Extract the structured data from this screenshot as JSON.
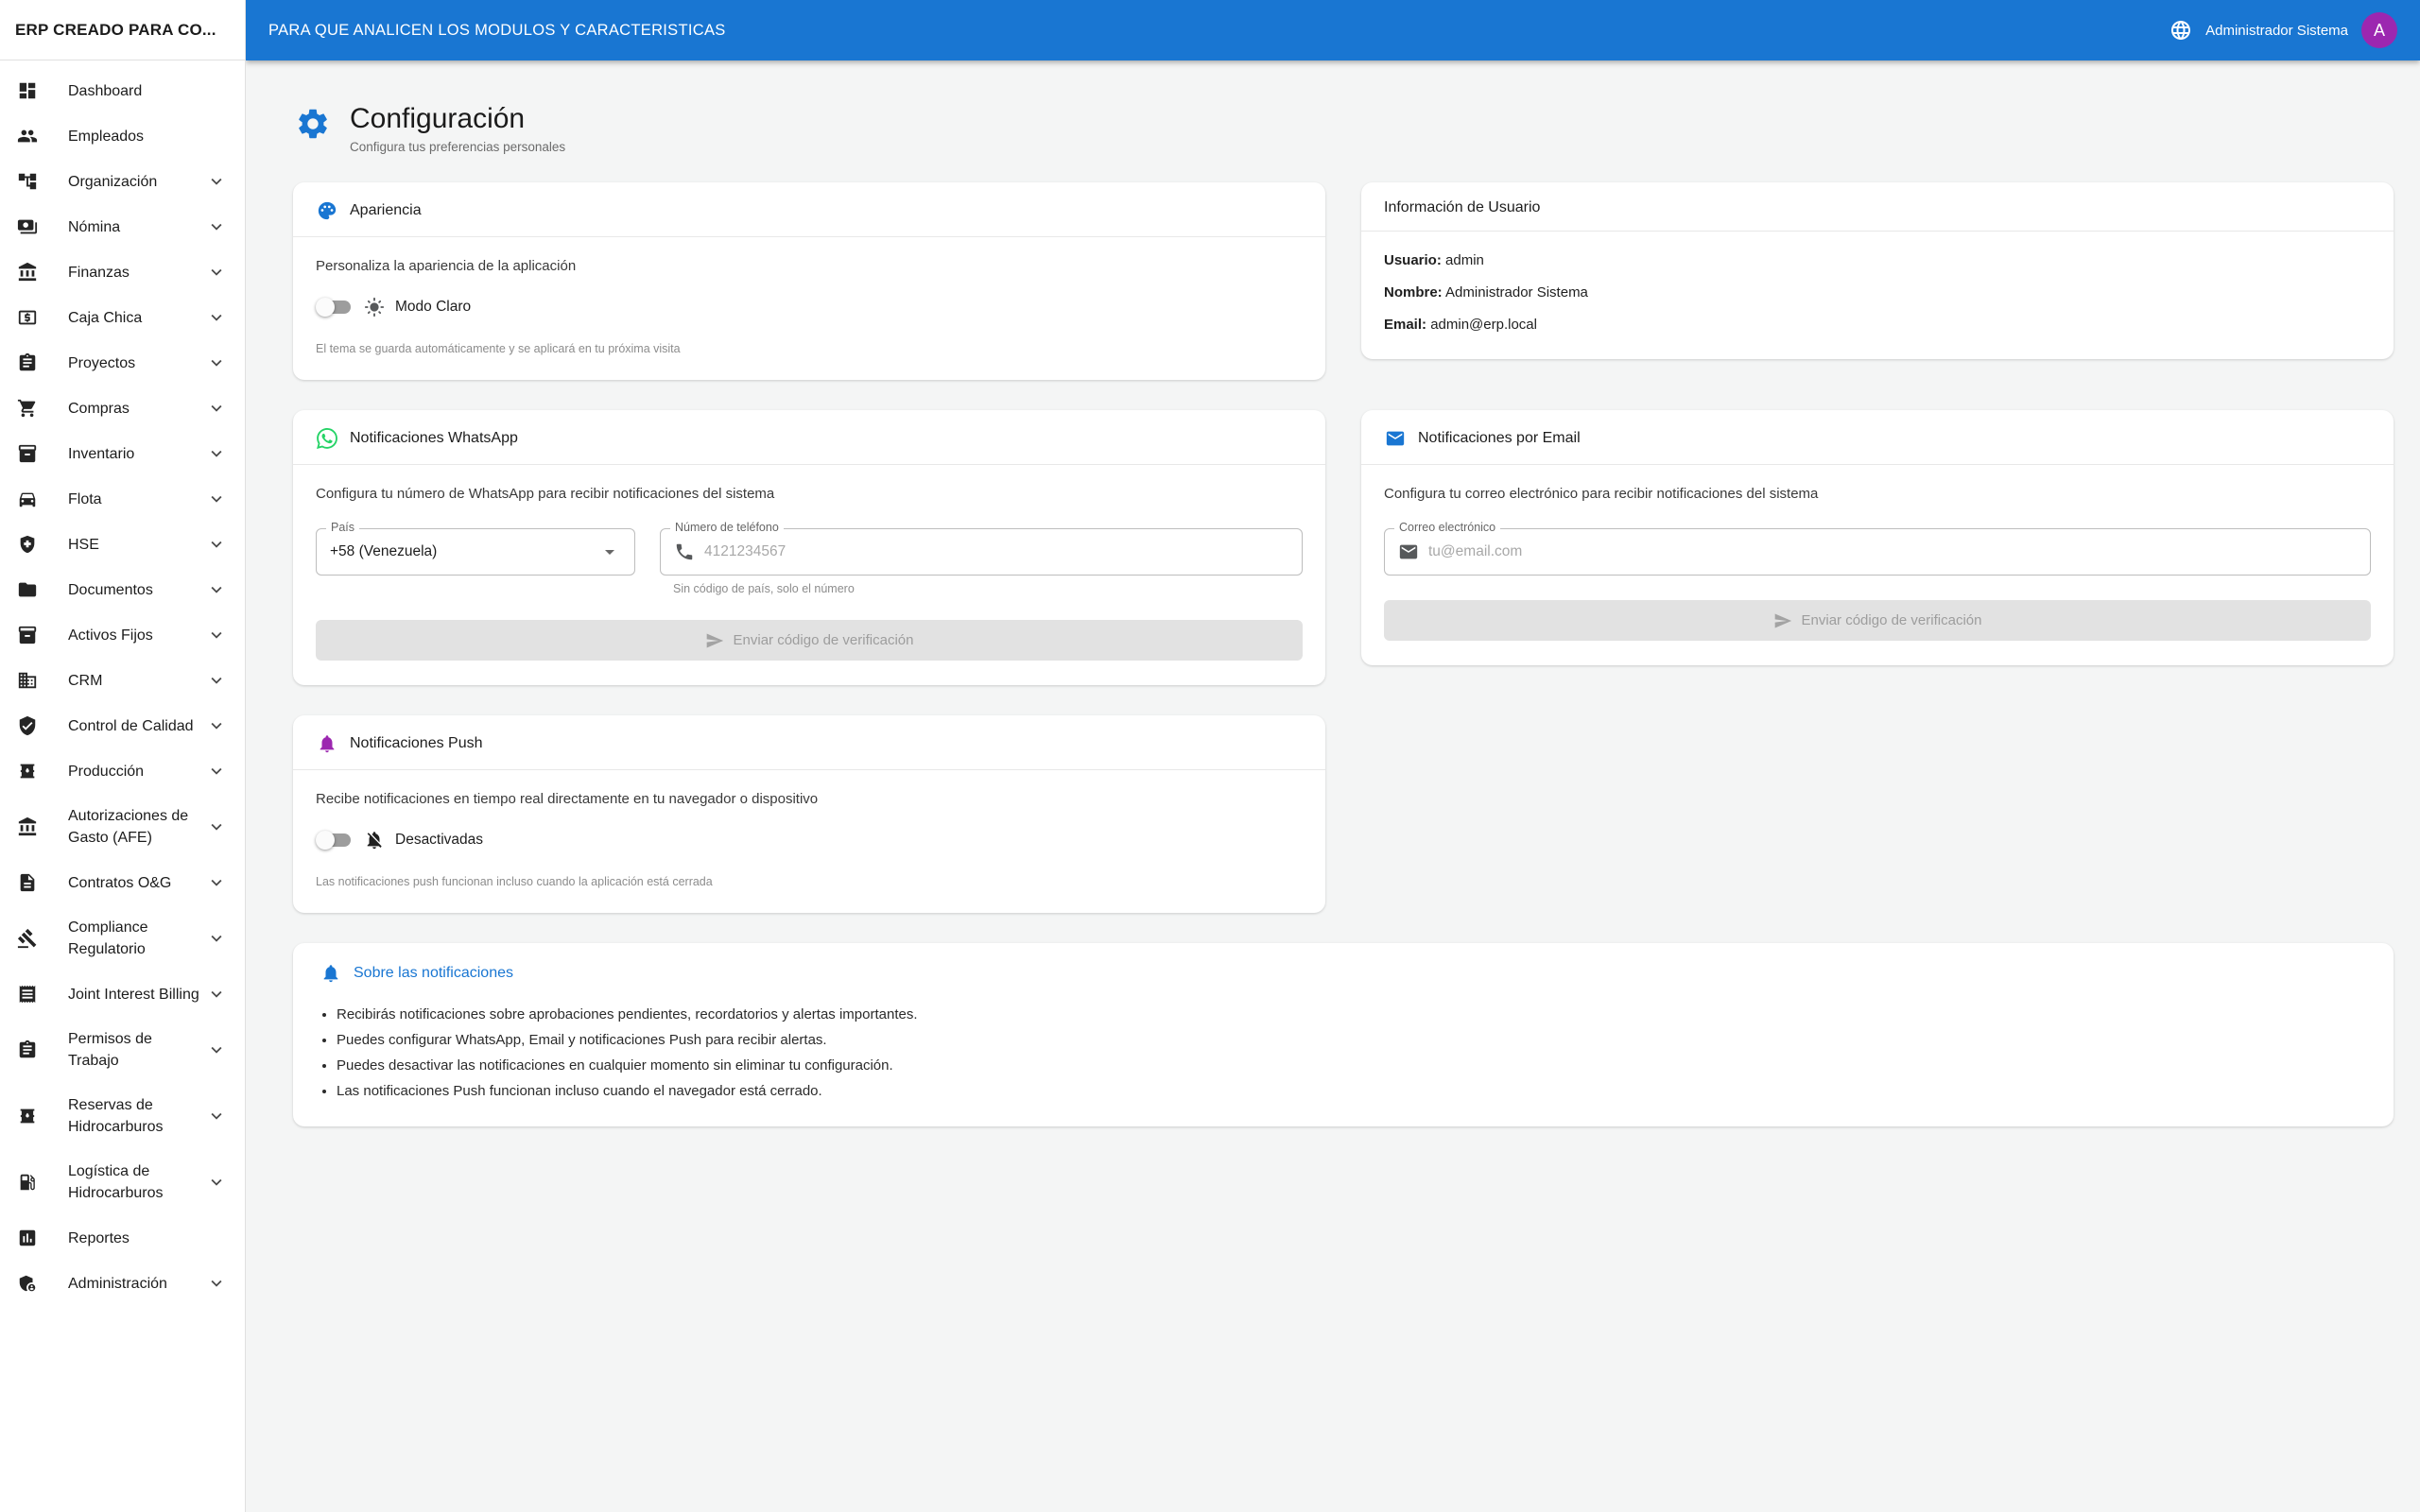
{
  "colors": {
    "accent": "#1976d2",
    "whatsapp_green": "#25d366",
    "push_purple": "#9c27b0",
    "avatar_bg": "#9c27b0"
  },
  "app_bar": {
    "sidebar_title": "ERP CREADO PARA CO...",
    "title": "PARA QUE ANALICEN LOS MODULOS Y CARACTERISTICAS",
    "globe_icon": "globe-icon",
    "user_name": "Administrador Sistema",
    "avatar_initial": "A"
  },
  "sidebar": {
    "items": [
      {
        "label": "Dashboard",
        "icon": "dashboard-icon",
        "expandable": false
      },
      {
        "label": "Empleados",
        "icon": "people-icon",
        "expandable": false
      },
      {
        "label": "Organización",
        "icon": "org-tree-icon",
        "expandable": true
      },
      {
        "label": "Nómina",
        "icon": "payments-icon",
        "expandable": true
      },
      {
        "label": "Finanzas",
        "icon": "bank-icon",
        "expandable": true
      },
      {
        "label": "Caja Chica",
        "icon": "cash-box-icon",
        "expandable": true
      },
      {
        "label": "Proyectos",
        "icon": "clipboard-icon",
        "expandable": true
      },
      {
        "label": "Compras",
        "icon": "cart-icon",
        "expandable": true
      },
      {
        "label": "Inventario",
        "icon": "inventory-icon",
        "expandable": true
      },
      {
        "label": "Flota",
        "icon": "car-icon",
        "expandable": true
      },
      {
        "label": "HSE",
        "icon": "health-safety-icon",
        "expandable": true
      },
      {
        "label": "Documentos",
        "icon": "folder-icon",
        "expandable": true
      },
      {
        "label": "Activos Fijos",
        "icon": "inventory-icon",
        "expandable": true
      },
      {
        "label": "CRM",
        "icon": "building-icon",
        "expandable": true
      },
      {
        "label": "Control de Calidad",
        "icon": "shield-check-icon",
        "expandable": true
      },
      {
        "label": "Producción",
        "icon": "oil-barrel-icon",
        "expandable": true
      },
      {
        "label": "Autorizaciones de Gasto (AFE)",
        "icon": "bank-icon",
        "expandable": true
      },
      {
        "label": "Contratos O&G",
        "icon": "document-icon",
        "expandable": true
      },
      {
        "label": "Compliance Regulatorio",
        "icon": "gavel-icon",
        "expandable": true
      },
      {
        "label": "Joint Interest Billing",
        "icon": "receipt-icon",
        "expandable": true
      },
      {
        "label": "Permisos de Trabajo",
        "icon": "clipboard-icon",
        "expandable": true
      },
      {
        "label": "Reservas de Hidrocarburos",
        "icon": "oil-barrel-icon",
        "expandable": true
      },
      {
        "label": "Logística de Hidrocarburos",
        "icon": "fuel-icon",
        "expandable": true
      },
      {
        "label": "Reportes",
        "icon": "chart-icon",
        "expandable": false
      },
      {
        "label": "Administración",
        "icon": "admin-icon",
        "expandable": true
      }
    ]
  },
  "page": {
    "icon": "gear-icon",
    "title": "Configuración",
    "subtitle": "Configura tus preferencias personales"
  },
  "cards": {
    "appearance": {
      "icon": "palette-icon",
      "title": "Apariencia",
      "description": "Personaliza la apariencia de la aplicación",
      "toggle_icon": "sun-icon",
      "toggle_label": "Modo Claro",
      "toggle_state": "off",
      "caption": "El tema se guarda automáticamente y se aplicará en tu próxima visita"
    },
    "user_info": {
      "title": "Información de Usuario",
      "fields": [
        {
          "label": "Usuario:",
          "value": "admin"
        },
        {
          "label": "Nombre:",
          "value": "Administrador Sistema"
        },
        {
          "label": "Email:",
          "value": "admin@erp.local"
        }
      ]
    },
    "whatsapp": {
      "icon": "whatsapp-icon",
      "title": "Notificaciones WhatsApp",
      "description": "Configura tu número de WhatsApp para recibir notificaciones del sistema",
      "country_label": "País",
      "country_value": "+58 (Venezuela)",
      "dropdown_icon": "dropdown-arrow-icon",
      "phone_label": "Número de teléfono",
      "phone_icon": "phone-icon",
      "phone_placeholder": "4121234567",
      "phone_helper": "Sin código de país, solo el número",
      "button_icon": "send-icon",
      "button_label": "Enviar código de verificación"
    },
    "email": {
      "icon": "email-icon",
      "title": "Notificaciones por Email",
      "description": "Configura tu correo electrónico para recibir notificaciones del sistema",
      "email_label": "Correo electrónico",
      "field_icon": "email-icon",
      "email_placeholder": "tu@email.com",
      "button_icon": "send-icon",
      "button_label": "Enviar código de verificación"
    },
    "push": {
      "icon": "bell-icon",
      "title": "Notificaciones Push",
      "description": "Recibe notificaciones en tiempo real directamente en tu navegador o dispositivo",
      "toggle_icon": "bell-off-icon",
      "toggle_label": "Desactivadas",
      "toggle_state": "off",
      "caption": "Las notificaciones push funcionan incluso cuando la aplicación está cerrada"
    },
    "about": {
      "icon": "bell-icon",
      "title": "Sobre las notificaciones",
      "bullets": [
        "Recibirás notificaciones sobre aprobaciones pendientes, recordatorios y alertas importantes.",
        "Puedes configurar WhatsApp, Email y notificaciones Push para recibir alertas.",
        "Puedes desactivar las notificaciones en cualquier momento sin eliminar tu configuración.",
        "Las notificaciones Push funcionan incluso cuando el navegador está cerrado."
      ]
    }
  }
}
